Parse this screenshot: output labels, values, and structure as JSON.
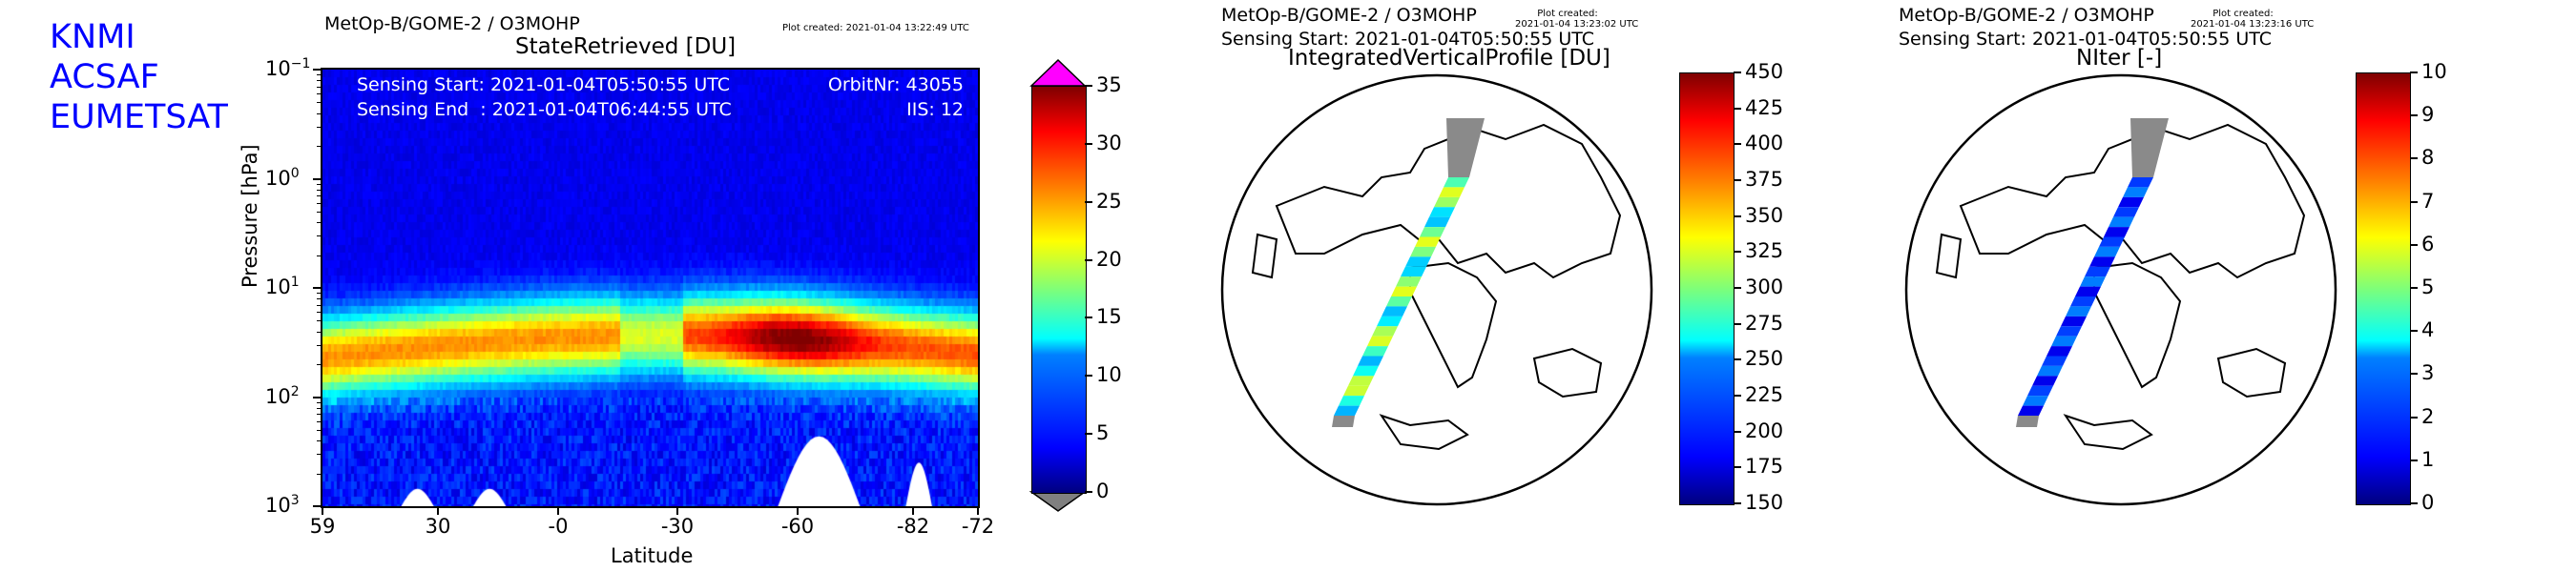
{
  "logo": {
    "lines": [
      "KNMI",
      "ACSAF",
      "EUMETSAT"
    ]
  },
  "panels": [
    {
      "header": "MetOp-B/GOME-2 / O3MOHP",
      "plot_created": "Plot created: 2021-01-04 13:22:49 UTC",
      "title": "StateRetrieved [DU]",
      "info": {
        "sensing_start": "Sensing Start: 2021-01-04T05:50:55 UTC",
        "sensing_end": "Sensing End  : 2021-01-04T06:44:55 UTC",
        "orbit": "OrbitNr: 43055",
        "iis": "IIS: 12"
      }
    },
    {
      "header": "MetOp-B/GOME-2 / O3MOHP",
      "plot_created_label": "Plot created:",
      "plot_created": "2021-01-04 13:23:02 UTC",
      "sensing_start": "Sensing Start: 2021-01-04T05:50:55 UTC",
      "title": "IntegratedVerticalProfile [DU]"
    },
    {
      "header": "MetOp-B/GOME-2 / O3MOHP",
      "plot_created_label": "Plot created:",
      "plot_created": "2021-01-04 13:23:16 UTC",
      "sensing_start": "Sensing Start: 2021-01-04T05:50:55 UTC",
      "title": "NIter [-]"
    }
  ],
  "chart_data": [
    {
      "type": "heatmap",
      "title": "StateRetrieved [DU]",
      "xlabel": "Latitude",
      "ylabel": "Pressure [hPa]",
      "x_ticks": [
        "59",
        "30",
        "-0",
        "-30",
        "-60",
        "-82",
        "-72"
      ],
      "y_ticks": [
        "10",
        "10",
        "10",
        "10",
        "10"
      ],
      "y_tick_exponents": [
        "−1",
        "0",
        "1",
        "2",
        "3"
      ],
      "y_scale": "log",
      "ylim": [
        0.1,
        1000
      ],
      "colorbar": {
        "min": 0,
        "max": 35,
        "ticks": [
          "0",
          "5",
          "10",
          "15",
          "20",
          "25",
          "30",
          "35"
        ],
        "extend": "both",
        "colormap": "jet"
      },
      "peak_pressure_hPa": 40,
      "peak_value_max": 32
    },
    {
      "type": "map",
      "title": "IntegratedVerticalProfile [DU]",
      "colorbar": {
        "min": 150,
        "max": 450,
        "ticks": [
          "150",
          "175",
          "200",
          "225",
          "250",
          "275",
          "300",
          "325",
          "350",
          "375",
          "400",
          "425",
          "450"
        ],
        "colormap": "jet"
      }
    },
    {
      "type": "map",
      "title": "NIter [-]",
      "colorbar": {
        "min": 0,
        "max": 10,
        "ticks": [
          "0",
          "1",
          "2",
          "3",
          "4",
          "5",
          "6",
          "7",
          "8",
          "9",
          "10"
        ],
        "colormap": "jet"
      }
    }
  ]
}
